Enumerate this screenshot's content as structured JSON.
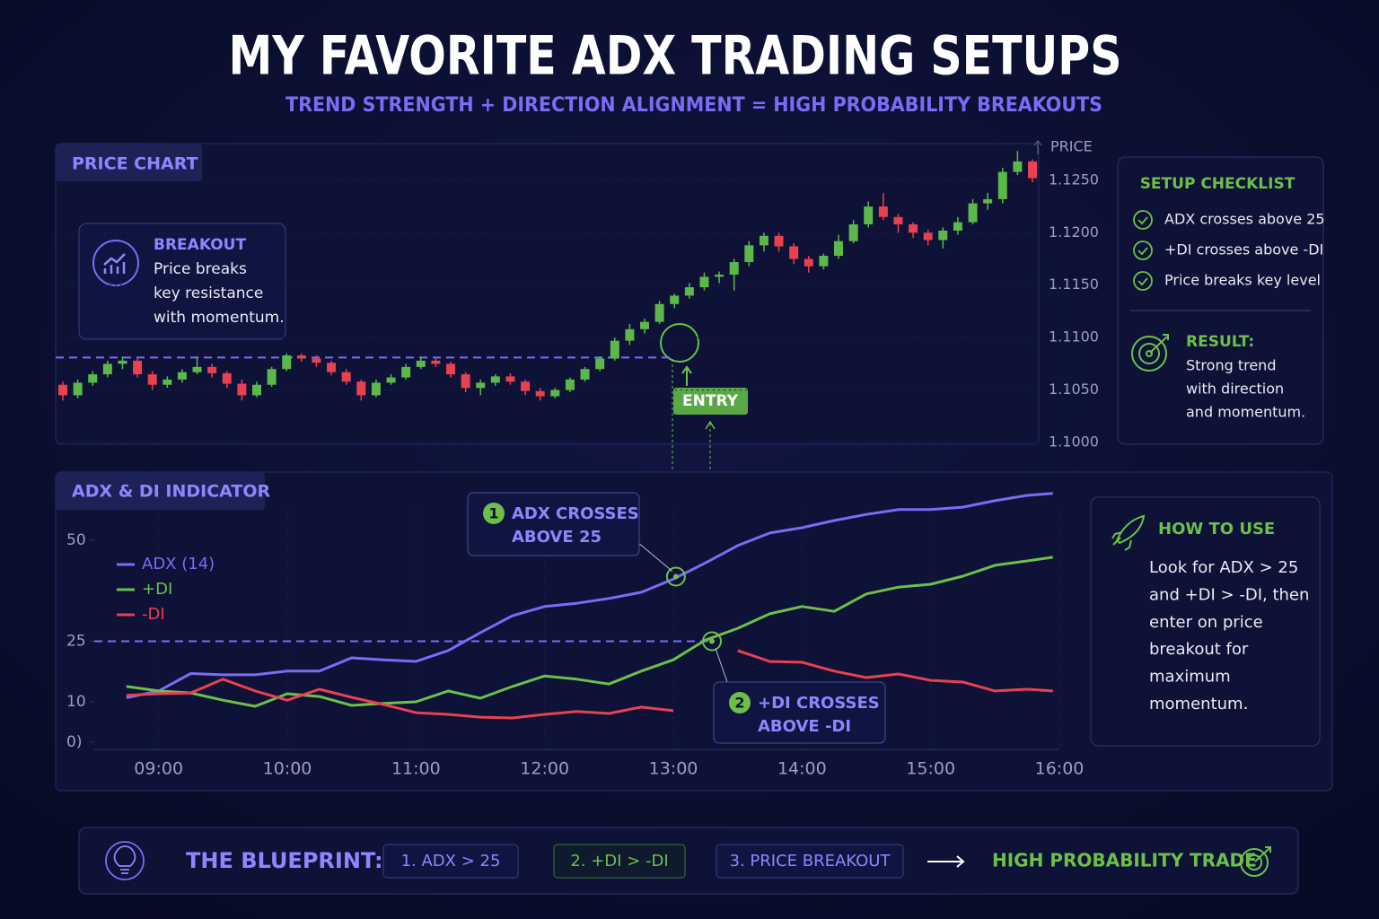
{
  "title": "MY FAVORITE ADX TRADING SETUPS",
  "subtitle": "TREND STRENGTH + DIRECTION ALIGNMENT = HIGH PROBABILITY BREAKOUTS",
  "chart_data": [
    {
      "type": "candlestick",
      "title": "PRICE CHART",
      "y_label": "PRICE",
      "up_color": "#5cb84a",
      "down_color": "#e8414f",
      "grid": true,
      "ylim": [
        1.1,
        1.1285
      ],
      "yticks": [
        {
          "value": 1.1,
          "label": "1.1000"
        },
        {
          "value": 1.105,
          "label": "1.1050"
        },
        {
          "value": 1.11,
          "label": "1.1100"
        },
        {
          "value": 1.115,
          "label": "1.1150"
        },
        {
          "value": 1.12,
          "label": "1.1200"
        },
        {
          "value": 1.125,
          "label": "1.1250"
        }
      ],
      "resistance": 1.1081,
      "open": [
        1.1055,
        1.1045,
        1.1057,
        1.1065,
        1.1075,
        1.1078,
        1.1065,
        1.1055,
        1.106,
        1.1067,
        1.1072,
        1.1066,
        1.1056,
        1.1045,
        1.1055,
        1.107,
        1.1083,
        1.108,
        1.1076,
        1.1067,
        1.1058,
        1.1045,
        1.1057,
        1.1062,
        1.1072,
        1.1078,
        1.1075,
        1.1065,
        1.1052,
        1.1057,
        1.1063,
        1.1058,
        1.1049,
        1.1044,
        1.105,
        1.106,
        1.107,
        1.108,
        1.1097,
        1.1108,
        1.1115,
        1.1132,
        1.114,
        1.1148,
        1.1158,
        1.116,
        1.1172,
        1.1188,
        1.1197,
        1.1187,
        1.1175,
        1.1168,
        1.1178,
        1.1192,
        1.1208,
        1.1225,
        1.1215,
        1.1208,
        1.12,
        1.1193,
        1.1202,
        1.121,
        1.1228,
        1.1232,
        1.1258,
        1.1268
      ],
      "high": [
        1.1058,
        1.106,
        1.1068,
        1.1078,
        1.1082,
        1.108,
        1.1068,
        1.1063,
        1.107,
        1.1082,
        1.1075,
        1.1068,
        1.106,
        1.1058,
        1.1072,
        1.1085,
        1.1085,
        1.1083,
        1.1078,
        1.107,
        1.106,
        1.106,
        1.1065,
        1.1075,
        1.1082,
        1.108,
        1.1077,
        1.1067,
        1.106,
        1.1065,
        1.1066,
        1.106,
        1.1052,
        1.1052,
        1.1062,
        1.1072,
        1.1082,
        1.11,
        1.1113,
        1.1118,
        1.1135,
        1.1142,
        1.1152,
        1.1162,
        1.1163,
        1.1175,
        1.1192,
        1.12,
        1.12,
        1.119,
        1.1178,
        1.118,
        1.1198,
        1.1212,
        1.123,
        1.1238,
        1.1218,
        1.121,
        1.1203,
        1.1205,
        1.1215,
        1.1232,
        1.1238,
        1.1262,
        1.1278,
        1.127
      ],
      "low": [
        1.104,
        1.1042,
        1.1054,
        1.1062,
        1.107,
        1.1062,
        1.105,
        1.1052,
        1.1057,
        1.1065,
        1.1062,
        1.1052,
        1.104,
        1.1043,
        1.1053,
        1.1068,
        1.1077,
        1.1072,
        1.1064,
        1.1055,
        1.104,
        1.1043,
        1.1055,
        1.106,
        1.107,
        1.1072,
        1.1062,
        1.1048,
        1.1045,
        1.1054,
        1.1055,
        1.1045,
        1.104,
        1.1042,
        1.1048,
        1.1058,
        1.1068,
        1.1078,
        1.1093,
        1.1104,
        1.1113,
        1.1128,
        1.1137,
        1.1145,
        1.1152,
        1.1145,
        1.1168,
        1.1182,
        1.1182,
        1.117,
        1.1162,
        1.1165,
        1.1175,
        1.119,
        1.1205,
        1.1212,
        1.12,
        1.1195,
        1.1188,
        1.1185,
        1.1198,
        1.1208,
        1.1222,
        1.1228,
        1.1255,
        1.1248
      ],
      "close": [
        1.1045,
        1.1057,
        1.1065,
        1.1075,
        1.1078,
        1.1065,
        1.1055,
        1.106,
        1.1067,
        1.1072,
        1.1066,
        1.1056,
        1.1045,
        1.1055,
        1.107,
        1.1083,
        1.108,
        1.1076,
        1.1067,
        1.1058,
        1.1045,
        1.1057,
        1.1062,
        1.1072,
        1.1078,
        1.1075,
        1.1065,
        1.1052,
        1.1057,
        1.1063,
        1.1058,
        1.1049,
        1.1044,
        1.105,
        1.106,
        1.107,
        1.108,
        1.1097,
        1.1108,
        1.1115,
        1.1132,
        1.114,
        1.1148,
        1.1158,
        1.116,
        1.1172,
        1.1188,
        1.1197,
        1.1187,
        1.1175,
        1.1168,
        1.1178,
        1.1192,
        1.1208,
        1.1225,
        1.1215,
        1.1208,
        1.12,
        1.1193,
        1.1202,
        1.121,
        1.1228,
        1.1232,
        1.1258,
        1.1268,
        1.1252
      ],
      "breakout": {
        "title": "BREAKOUT",
        "lines": [
          "Price breaks",
          "key resistance",
          "with momentum."
        ]
      },
      "entry_label": "ENTRY"
    },
    {
      "type": "line",
      "title": "ADX & DI INDICATOR",
      "xlim": [
        8.5,
        16
      ],
      "xticks": [
        {
          "value": 9,
          "label": "09:00"
        },
        {
          "value": 10,
          "label": "10:00"
        },
        {
          "value": 11,
          "label": "11:00"
        },
        {
          "value": 12,
          "label": "12:00"
        },
        {
          "value": 13,
          "label": "13:00"
        },
        {
          "value": 14,
          "label": "14:00"
        },
        {
          "value": 15,
          "label": "15:00"
        },
        {
          "value": 16,
          "label": "16:00"
        }
      ],
      "ylim": [
        0,
        62
      ],
      "yticks": [
        {
          "value": 0,
          "label": "0)"
        },
        10,
        25,
        50
      ],
      "threshold": 25,
      "x": [
        8.75,
        9,
        9.25,
        9.5,
        9.75,
        10,
        10.25,
        10.5,
        10.75,
        11,
        11.25,
        11.5,
        11.75,
        12,
        12.25,
        12.5,
        12.75,
        13,
        13.25,
        13.5,
        13.75,
        14,
        14.25,
        14.5,
        14.75,
        15,
        15.25,
        15.5,
        15.75,
        15.95
      ],
      "series": [
        {
          "name": "ADX (14)",
          "color": "#7b6cf6",
          "values": [
            11,
            12.7,
            17,
            16.7,
            16.7,
            17.6,
            17.6,
            20.9,
            20.4,
            20,
            22.7,
            27.1,
            31.3,
            33.6,
            34.4,
            35.6,
            37.1,
            40.4,
            44.4,
            48.7,
            51.8,
            53.1,
            54.9,
            56.4,
            57.6,
            57.6,
            58.2,
            59.8,
            61.1,
            61.6
          ]
        },
        {
          "name": "+DI",
          "color": "#6cc04a",
          "values": [
            13.8,
            12.7,
            12.2,
            10.4,
            8.9,
            12,
            11.3,
            9.1,
            9.6,
            10,
            12.7,
            10.9,
            13.8,
            16.4,
            15.6,
            14.4,
            17.6,
            20.4,
            25.3,
            28.2,
            31.8,
            33.6,
            32.4,
            36.7,
            38.4,
            39.1,
            41.1,
            43.8,
            44.9,
            45.8
          ]
        },
        {
          "name": "-DI",
          "color": "#e8414f",
          "values": [
            11.6,
            12,
            12.2,
            15.6,
            12.7,
            10.4,
            13.1,
            11.1,
            9.3,
            7.3,
            6.9,
            6.2,
            6,
            6.9,
            7.6,
            7.1,
            8.7,
            7.8,
            null,
            22.7,
            20,
            19.8,
            17.6,
            16,
            16.9,
            15.3,
            14.9,
            12.7,
            13.1,
            12.7
          ]
        }
      ],
      "annotations": [
        {
          "number": "1",
          "lines": [
            "ADX CROSSES",
            "ABOVE 25"
          ],
          "x": 13.02,
          "y": 41
        },
        {
          "number": "2",
          "lines": [
            "+DI CROSSES",
            "ABOVE -DI"
          ],
          "x": 13.3,
          "y": 25
        }
      ]
    }
  ],
  "checklist": {
    "title": "SETUP CHECKLIST",
    "items": [
      "ADX crosses above 25",
      "+DI crosses above -DI",
      "Price breaks key level"
    ],
    "result_title": "RESULT:",
    "result_lines": [
      "Strong trend",
      "with direction",
      "and momentum."
    ]
  },
  "how_to_use": {
    "title": "HOW TO USE",
    "lines": [
      "Look for ADX > 25",
      "and +DI > -DI, then",
      "enter on price",
      "breakout for",
      "maximum",
      "momentum."
    ]
  },
  "blueprint": {
    "title": "THE BLUEPRINT:",
    "steps": [
      "1. ADX > 25",
      "2. +DI > -DI",
      "3. PRICE BREAKOUT"
    ],
    "result": "HIGH PROBABILITY TRADE"
  }
}
